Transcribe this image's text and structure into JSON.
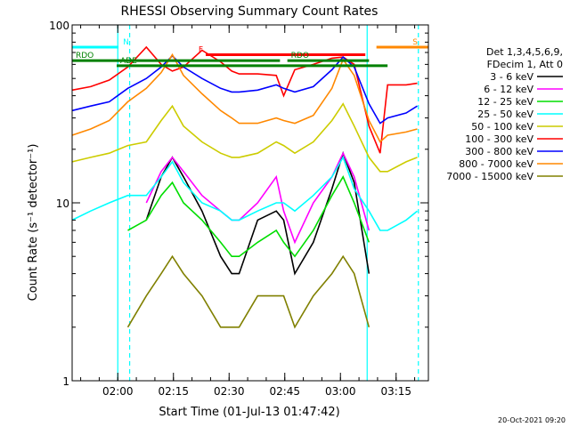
{
  "chart_data": {
    "type": "line",
    "title": "RHESSI Observing Summary Count Rates",
    "xlabel": "Start Time (01-Jul-13 01:47:42)",
    "ylabel": "Count Rate (s⁻¹ detector⁻¹)",
    "yscale": "log",
    "ylim": [
      1,
      100
    ],
    "xlim_minutes_after_start": [
      0,
      96
    ],
    "x_ticks": [
      {
        "label": "02:00",
        "m": 12.3
      },
      {
        "label": "02:15",
        "m": 27.3
      },
      {
        "label": "02:30",
        "m": 42.3
      },
      {
        "label": "02:45",
        "m": 57.3
      },
      {
        "label": "03:00",
        "m": 72.3
      },
      {
        "label": "03:15",
        "m": 87.3
      }
    ],
    "y_ticks": [
      {
        "label": "1",
        "v": 1
      },
      {
        "label": "10",
        "v": 10
      },
      {
        "label": "100",
        "v": 100
      }
    ],
    "legend_header": [
      "Det 1,3,4,5,6,9,",
      "FDecim 1, Att 0"
    ],
    "legend_position": "right",
    "x": [
      0,
      5,
      10,
      15,
      20,
      24,
      27,
      30,
      35,
      40,
      43,
      45,
      50,
      55,
      57,
      60,
      65,
      70,
      73,
      76,
      80,
      83,
      85,
      90,
      93
    ],
    "series": [
      {
        "name": "3 - 6 keV",
        "color": "#000000",
        "values": [
          null,
          null,
          null,
          null,
          8,
          14,
          18,
          14,
          9,
          5,
          4,
          4,
          8,
          9,
          8,
          4,
          6,
          12,
          19,
          13,
          4,
          null,
          null,
          null,
          null
        ]
      },
      {
        "name": "6 - 12 keV",
        "color": "#ff00ff",
        "values": [
          null,
          null,
          null,
          null,
          10,
          15,
          18,
          15,
          11,
          9,
          8,
          8,
          10,
          14,
          9,
          6,
          10,
          14,
          19,
          14,
          7,
          null,
          null,
          null,
          null
        ]
      },
      {
        "name": "12 - 25 keV",
        "color": "#00dd00",
        "values": [
          null,
          null,
          null,
          7,
          8,
          11,
          13,
          10,
          8,
          6,
          5,
          5,
          6,
          7,
          6,
          5,
          7,
          11,
          14,
          10,
          6,
          null,
          null,
          null,
          null
        ]
      },
      {
        "name": "25 - 50 keV",
        "color": "#00ffff",
        "values": [
          8,
          9,
          10,
          11,
          11,
          14,
          17,
          13,
          10,
          9,
          8,
          8,
          9,
          10,
          10,
          9,
          11,
          14,
          18,
          12,
          9,
          7,
          7,
          8,
          9
        ]
      },
      {
        "name": "50 - 100 keV",
        "color": "#cccc00",
        "values": [
          17,
          18,
          19,
          21,
          22,
          29,
          35,
          27,
          22,
          19,
          18,
          18,
          19,
          22,
          21,
          19,
          22,
          29,
          36,
          27,
          18,
          15,
          15,
          17,
          18
        ]
      },
      {
        "name": "100 - 300 keV",
        "color": "#ff0000",
        "values": [
          43,
          45,
          49,
          58,
          75,
          60,
          55,
          58,
          72,
          62,
          55,
          53,
          53,
          52,
          40,
          56,
          60,
          65,
          66,
          60,
          27,
          19,
          46,
          46,
          47
        ]
      },
      {
        "name": "300 - 800 keV",
        "color": "#0000ff",
        "values": [
          33,
          35,
          37,
          44,
          50,
          58,
          67,
          58,
          50,
          44,
          42,
          42,
          43,
          46,
          44,
          42,
          45,
          56,
          66,
          58,
          36,
          28,
          30,
          32,
          35
        ]
      },
      {
        "name": "800 - 7000 keV",
        "color": "#ff8800",
        "values": [
          24,
          26,
          29,
          37,
          44,
          54,
          68,
          52,
          41,
          33,
          30,
          28,
          28,
          30,
          29,
          28,
          31,
          44,
          64,
          52,
          29,
          22,
          24,
          25,
          26
        ]
      },
      {
        "name": "7000 - 15000 keV",
        "color": "#808000",
        "values": [
          null,
          null,
          null,
          2,
          3,
          4,
          5,
          4,
          3,
          2,
          2,
          2,
          3,
          3,
          3,
          2,
          3,
          4,
          5,
          4,
          2,
          null,
          null,
          null,
          null
        ]
      }
    ],
    "status_bars": [
      {
        "label": "N",
        "color": "#00ffff",
        "value": 75,
        "m_from": 0,
        "m_to": 12.5
      },
      {
        "label": "S",
        "color": "#ff8800",
        "value": 75,
        "m_from": 82,
        "m_to": 96
      },
      {
        "label": "F",
        "color": "#ff0000",
        "value": 68,
        "m_from": 36,
        "m_to": 79
      },
      {
        "label": "RDO",
        "color": "#008000",
        "value": 63,
        "m_from": 0,
        "m_to": 56
      },
      {
        "label": "RDO",
        "color": "#008000",
        "value": 63,
        "m_from": 58,
        "m_to": 80
      },
      {
        "label": "ADE",
        "color": "#008000",
        "value": 59,
        "m_from": 12,
        "m_to": 85
      }
    ],
    "event_lines": [
      {
        "color": "#00ffff",
        "m": 12.3,
        "style": "solid"
      },
      {
        "color": "#00ffff",
        "m": 15.5,
        "style": "dashed"
      },
      {
        "color": "#00ffff",
        "m": 79.5,
        "style": "solid"
      },
      {
        "color": "#00ffff",
        "m": 93.3,
        "style": "dashed"
      }
    ]
  },
  "timestamp": "20-Oct-2021 09:20"
}
